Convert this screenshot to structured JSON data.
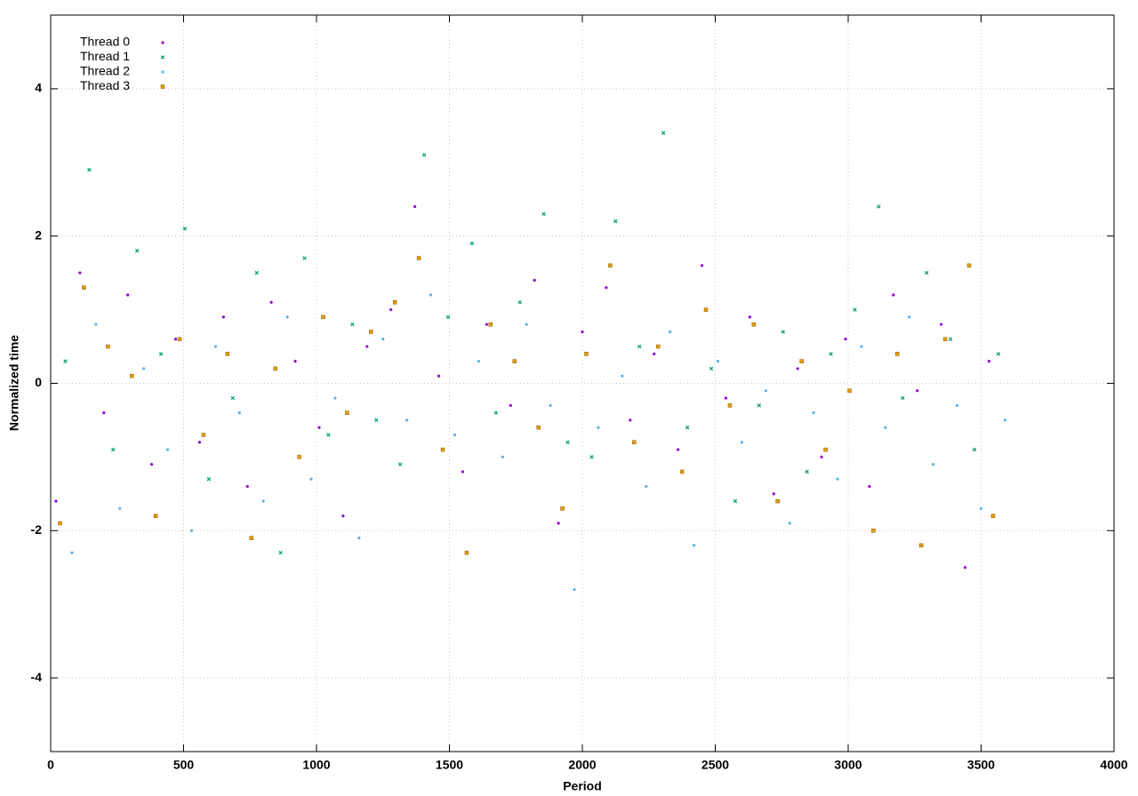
{
  "chart_data": {
    "type": "scatter",
    "x_label": "Period",
    "y_label": "Normalized time",
    "xlim": [
      0,
      4000
    ],
    "xticks": [
      0,
      500,
      1000,
      1500,
      2000,
      2500,
      3000,
      3500,
      4000
    ],
    "ylim": [
      -5,
      5
    ],
    "yticks": [
      -4,
      -2,
      0,
      2,
      4
    ],
    "grid": true,
    "legend": "top-left",
    "series": [
      {
        "name": "Thread 0",
        "color": "#9400d3",
        "marker": "dot",
        "x": [
          20,
          110,
          200,
          290,
          380,
          470,
          560,
          650,
          740,
          830,
          920,
          1010,
          1100,
          1190,
          1280,
          1370,
          1460,
          1550,
          1640,
          1730,
          1820,
          1910,
          2000,
          2090,
          2180,
          2270,
          2360,
          2450,
          2540,
          2630,
          2720,
          2810,
          2900,
          2990,
          3080,
          3170,
          3260,
          3350,
          3440,
          3530
        ],
        "values": [
          -1.6,
          1.5,
          -0.4,
          1.2,
          -1.1,
          0.6,
          -0.8,
          0.9,
          -1.4,
          1.1,
          0.3,
          -0.6,
          -1.8,
          0.5,
          1.0,
          2.4,
          0.1,
          -1.2,
          0.8,
          -0.3,
          1.4,
          -1.9,
          0.7,
          1.3,
          -0.5,
          0.4,
          -0.9,
          1.6,
          -0.2,
          0.9,
          -1.5,
          0.2,
          -1.0,
          0.6,
          -1.4,
          1.2,
          -0.1,
          0.8,
          -2.5,
          0.3
        ]
      },
      {
        "name": "Thread 1",
        "color": "#009e73",
        "marker": "cross",
        "x": [
          55,
          145,
          235,
          325,
          415,
          505,
          595,
          685,
          775,
          865,
          955,
          1045,
          1135,
          1225,
          1315,
          1405,
          1495,
          1585,
          1675,
          1765,
          1855,
          1945,
          2035,
          2125,
          2215,
          2305,
          2395,
          2485,
          2575,
          2665,
          2755,
          2845,
          2935,
          3025,
          3115,
          3205,
          3295,
          3385,
          3475,
          3565
        ],
        "values": [
          0.3,
          2.9,
          -0.9,
          1.8,
          0.4,
          2.1,
          -1.3,
          -0.2,
          1.5,
          -2.3,
          1.7,
          -0.7,
          0.8,
          -0.5,
          -1.1,
          3.1,
          0.9,
          1.9,
          -0.4,
          1.1,
          2.3,
          -0.8,
          -1.0,
          2.2,
          0.5,
          3.4,
          -0.6,
          0.2,
          -1.6,
          -0.3,
          0.7,
          -1.2,
          0.4,
          1.0,
          2.4,
          -0.2,
          1.5,
          0.6,
          -0.9,
          0.4
        ]
      },
      {
        "name": "Thread 2",
        "color": "#56b4e9",
        "marker": "dot",
        "x": [
          80,
          170,
          260,
          350,
          440,
          530,
          620,
          710,
          800,
          890,
          980,
          1070,
          1160,
          1250,
          1340,
          1430,
          1520,
          1610,
          1700,
          1790,
          1880,
          1970,
          2060,
          2150,
          2240,
          2330,
          2420,
          2510,
          2600,
          2690,
          2780,
          2870,
          2960,
          3050,
          3140,
          3230,
          3320,
          3410,
          3500,
          3590
        ],
        "values": [
          -2.3,
          0.8,
          -1.7,
          0.2,
          -0.9,
          -2.0,
          0.5,
          -0.4,
          -1.6,
          0.9,
          -1.3,
          -0.2,
          -2.1,
          0.6,
          -0.5,
          1.2,
          -0.7,
          0.3,
          -1.0,
          0.8,
          -0.3,
          -2.8,
          -0.6,
          0.1,
          -1.4,
          0.7,
          -2.2,
          0.3,
          -0.8,
          -0.1,
          -1.9,
          -0.4,
          -1.3,
          0.5,
          -0.6,
          0.9,
          -1.1,
          -0.3,
          -1.7,
          -0.5
        ]
      },
      {
        "name": "Thread 3",
        "color": "#e69f00",
        "marker": "square",
        "x": [
          35,
          125,
          215,
          305,
          395,
          485,
          575,
          665,
          755,
          845,
          935,
          1025,
          1115,
          1205,
          1295,
          1385,
          1475,
          1565,
          1655,
          1745,
          1835,
          1925,
          2015,
          2105,
          2195,
          2285,
          2375,
          2465,
          2555,
          2645,
          2735,
          2825,
          2915,
          3005,
          3095,
          3185,
          3275,
          3365,
          3455,
          3545
        ],
        "values": [
          -1.9,
          1.3,
          0.5,
          0.1,
          -1.8,
          0.6,
          -0.7,
          0.4,
          -2.1,
          0.2,
          -1.0,
          0.9,
          -0.4,
          0.7,
          1.1,
          1.7,
          -0.9,
          -2.3,
          0.8,
          0.3,
          -0.6,
          -1.7,
          0.4,
          1.6,
          -0.8,
          0.5,
          -1.2,
          1.0,
          -0.3,
          0.8,
          -1.6,
          0.3,
          -0.9,
          -0.1,
          -2.0,
          0.4,
          -2.2,
          0.6,
          1.6,
          -1.8
        ]
      }
    ]
  }
}
